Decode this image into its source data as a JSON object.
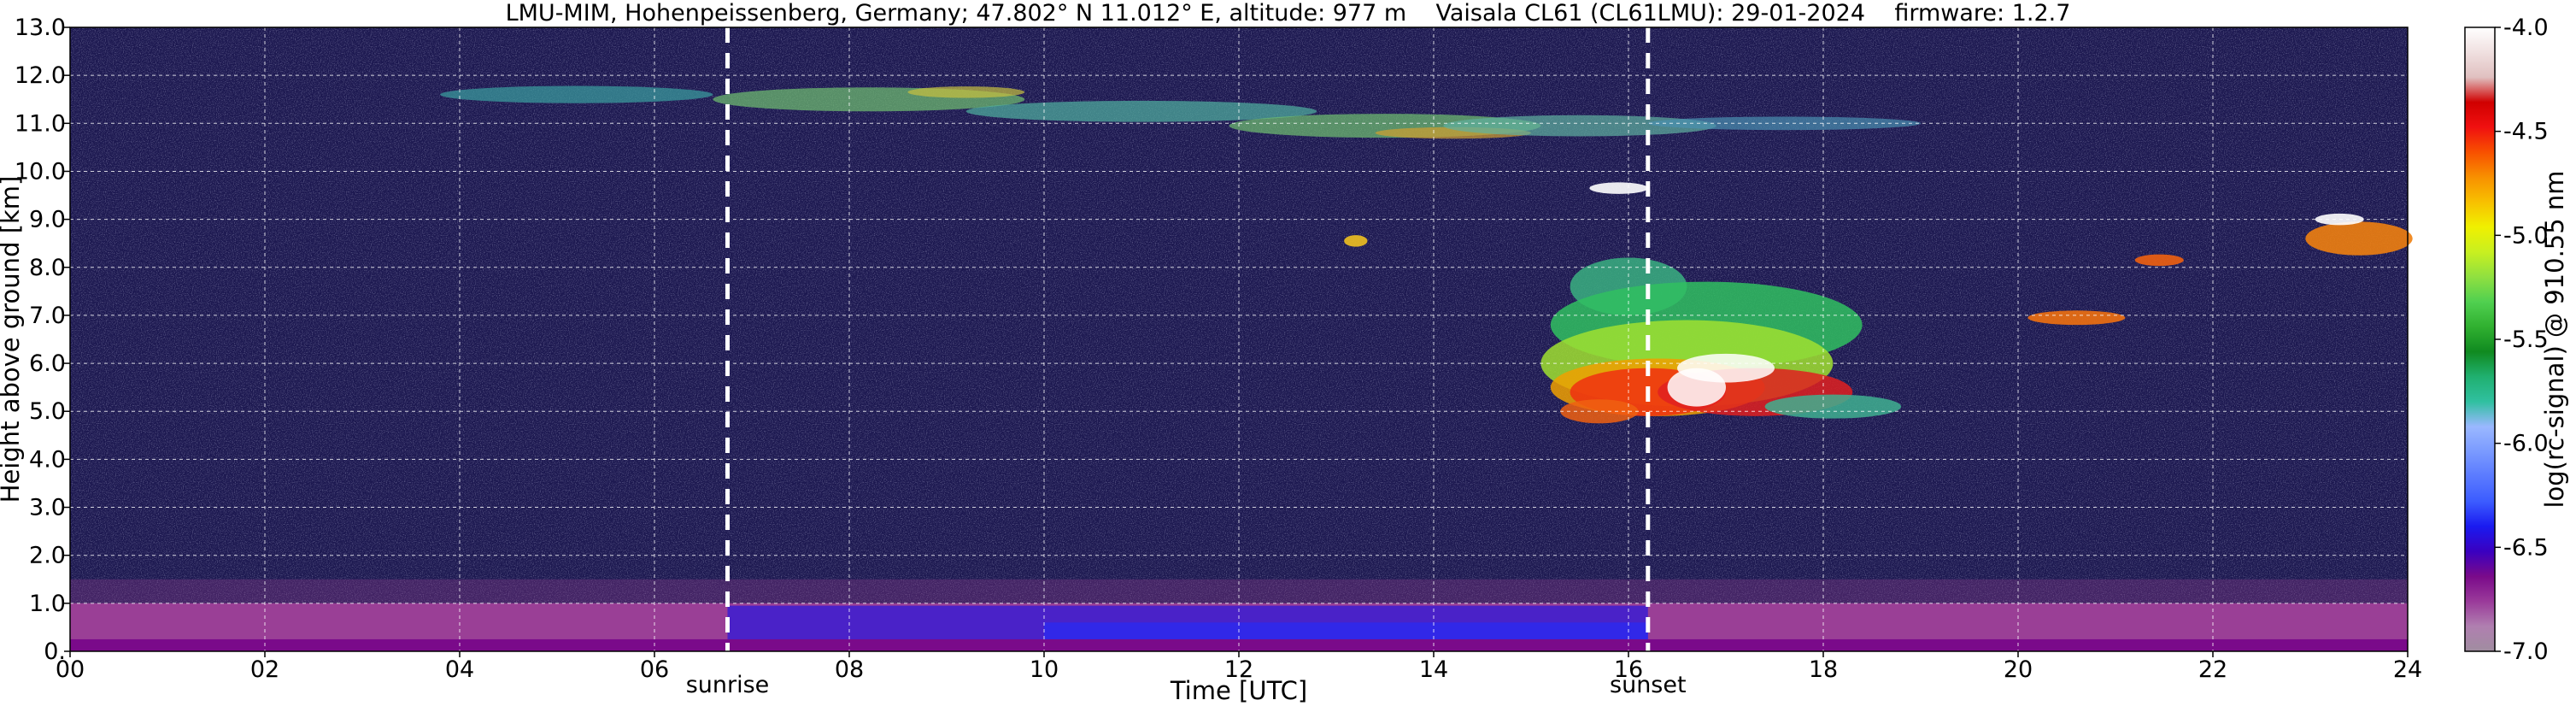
{
  "title": "LMU-MIM, Hohenpeissenberg, Germany; 47.802° N 11.012° E, altitude: 977 m    Vaisala CL61 (CL61LMU): 29-01-2024    firmware: 1.2.7",
  "chart_data": {
    "type": "heatmap",
    "xlabel": "Time [UTC]",
    "ylabel": "Height above ground [km]",
    "xlim": [
      0,
      24
    ],
    "ylim": [
      0,
      13
    ],
    "x_ticks": [
      "00",
      "02",
      "04",
      "06",
      "08",
      "10",
      "12",
      "14",
      "16",
      "18",
      "20",
      "22",
      "24"
    ],
    "x_tick_values": [
      0,
      2,
      4,
      6,
      8,
      10,
      12,
      14,
      16,
      18,
      20,
      22,
      24
    ],
    "y_ticks": [
      "0.",
      "1.0",
      "2.0",
      "3.0",
      "4.0",
      "5.0",
      "6.0",
      "7.0",
      "8.0",
      "9.0",
      "10.0",
      "11.0",
      "12.0",
      "13.0"
    ],
    "y_tick_values": [
      0,
      1,
      2,
      3,
      4,
      5,
      6,
      7,
      8,
      9,
      10,
      11,
      12,
      13
    ],
    "grid": true,
    "annotations": [
      {
        "label": "sunrise",
        "x": 6.75
      },
      {
        "label": "sunset",
        "x": 16.2
      }
    ],
    "colorbar": {
      "label": "log(rc-signal) @ 910.55 nm",
      "range": [
        -7.0,
        -4.0
      ],
      "ticks": [
        "-4.0",
        "-4.5",
        "-5.0",
        "-5.5",
        "-6.0",
        "-6.5",
        "-7.0"
      ],
      "tick_values": [
        -4.0,
        -4.5,
        -5.0,
        -5.5,
        -6.0,
        -6.5,
        -7.0
      ],
      "colors": [
        "#a08da0",
        "#b07fb0",
        "#9a3a9a",
        "#7a0a8a",
        "#3a00c0",
        "#1a1af0",
        "#3c5cff",
        "#5a7aff",
        "#7a9aff",
        "#9ab8ff",
        "#30c0a0",
        "#20b070",
        "#108a20",
        "#30b030",
        "#50d050",
        "#90e040",
        "#c8f020",
        "#f0f000",
        "#f8c000",
        "#f89000",
        "#f85000",
        "#f01010",
        "#d00000",
        "#e0c0c0",
        "#f0e0e0",
        "#ffffff"
      ]
    },
    "background_color": "#1c1850",
    "features": [
      {
        "name": "near-surface aerosol layer",
        "x_range": [
          0,
          24
        ],
        "y_range": [
          0,
          1.0
        ]
      },
      {
        "name": "cirrus band",
        "x_range": [
          4.5,
          19
        ],
        "y_range": [
          10.3,
          11.8
        ]
      },
      {
        "name": "mid-level cloud",
        "x_range": [
          15.0,
          18.8
        ],
        "y_range": [
          4.7,
          8.0
        ]
      },
      {
        "name": "cloud patch",
        "x_range": [
          20.0,
          21.3
        ],
        "y_range": [
          6.7,
          7.2
        ]
      },
      {
        "name": "cloud patch",
        "x_range": [
          21.2,
          21.7
        ],
        "y_range": [
          8.0,
          8.3
        ]
      },
      {
        "name": "cloud patch",
        "x_range": [
          22.8,
          24.0
        ],
        "y_range": [
          7.8,
          9.2
        ]
      }
    ]
  }
}
